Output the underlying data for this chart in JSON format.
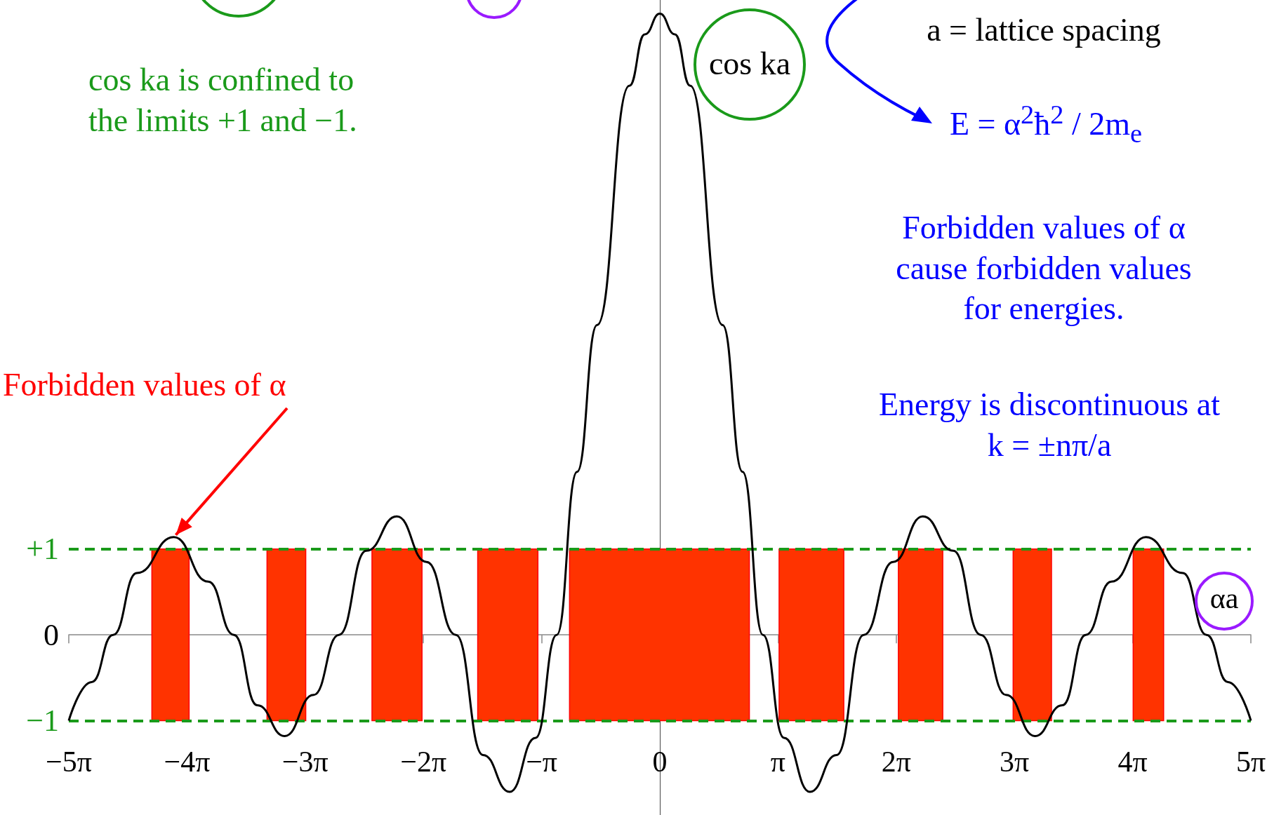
{
  "chart_data": {
    "type": "line",
    "xlabel": "αa",
    "ylabel": "cos ka",
    "annotations": [
      "a = lattice spacing",
      "E = α$^{2}$ħ$^{2}$ / 2m$_{e}$",
      "cos ka is confined to the limits +1 and −1.",
      "Forbidden values of α cause forbidden values for energies.",
      "Energy is discontinuous at k = ±nπ/a",
      {
        "text": "Forbidden values of α",
        "x": -12.92,
        "y": 1.14
      }
    ],
    "x": [
      -15.708,
      -15.1,
      -14.53,
      -13.9,
      -12.92,
      -12.0,
      -11.32,
      -10.7,
      -9.97,
      -9.2,
      -8.53,
      -7.8,
      -6.99,
      -6.2,
      -5.42,
      -4.7,
      -3.99,
      -3.3,
      -2.74,
      -2.2,
      -1.67,
      -0.81,
      -0.4,
      0,
      0.4,
      0.81,
      1.67,
      2.2,
      2.74,
      3.3,
      3.99,
      4.7,
      5.42,
      6.2,
      6.99,
      7.8,
      8.53,
      9.2,
      9.97,
      10.7,
      11.32,
      12.0,
      12.92,
      13.9,
      14.53,
      15.1,
      15.708
    ],
    "values": [
      -1.0,
      -0.55,
      0,
      0.72,
      1.14,
      0.62,
      0,
      -0.82,
      -1.18,
      -0.7,
      0,
      0.98,
      1.38,
      0.85,
      0,
      -1.4,
      -1.83,
      -1.2,
      0,
      1.9,
      3.61,
      6.4,
      7.0,
      7.24,
      7.0,
      6.4,
      3.61,
      1.9,
      0,
      -1.2,
      -1.83,
      -1.4,
      0,
      0.85,
      1.38,
      0.98,
      0,
      -0.7,
      -1.18,
      -0.82,
      0,
      0.62,
      1.14,
      0.72,
      0,
      -0.55,
      -1.0
    ],
    "color": "#000000",
    "marker": "none",
    "line_style": "solid",
    "grid": false,
    "xlim": [
      -15.708,
      15.708
    ],
    "xticks": [
      {
        "value": -15.708,
        "label": "−5π"
      },
      {
        "value": -12.566,
        "label": "−4π"
      },
      {
        "value": -9.425,
        "label": "−3π"
      },
      {
        "value": -6.283,
        "label": "−2π"
      },
      {
        "value": -3.142,
        "label": "−π"
      },
      0,
      {
        "value": 3.142,
        "label": "π"
      },
      {
        "value": 6.283,
        "label": "2π"
      },
      {
        "value": 9.425,
        "label": "3π"
      },
      {
        "value": 12.566,
        "label": "4π"
      },
      {
        "value": 15.708,
        "label": "5π"
      }
    ],
    "ylim": [
      -2.1,
      7.4
    ],
    "yticks": [
      {
        "value": -1,
        "label": "−1"
      },
      0,
      {
        "value": 1,
        "label": "+1"
      }
    ],
    "ref_lines": [
      {
        "axis": "y",
        "value": 1,
        "color": "#1a9a1a",
        "line_style": "dashed"
      },
      {
        "axis": "y",
        "value": -1,
        "color": "#1a9a1a",
        "line_style": "dashed"
      }
    ],
    "bands": [
      {
        "axis": "x",
        "from": -13.5,
        "to": -12.51,
        "color": "#ff3300"
      },
      {
        "axis": "x",
        "from": -10.44,
        "to": -9.41,
        "color": "#ff3300"
      },
      {
        "axis": "x",
        "from": -7.65,
        "to": -6.32,
        "color": "#ff3300"
      },
      {
        "axis": "x",
        "from": -4.84,
        "to": -3.24,
        "color": "#ff3300"
      },
      {
        "axis": "x",
        "from": -2.4,
        "to": 2.38,
        "color": "#ff3300"
      },
      {
        "axis": "x",
        "from": 3.17,
        "to": 4.89,
        "color": "#ff3300"
      },
      {
        "axis": "x",
        "from": 6.34,
        "to": 7.52,
        "color": "#ff3300"
      },
      {
        "axis": "x",
        "from": 9.39,
        "to": 10.41,
        "color": "#ff3300"
      },
      {
        "axis": "x",
        "from": 12.58,
        "to": 13.39,
        "color": "#ff3300"
      }
    ]
  }
}
